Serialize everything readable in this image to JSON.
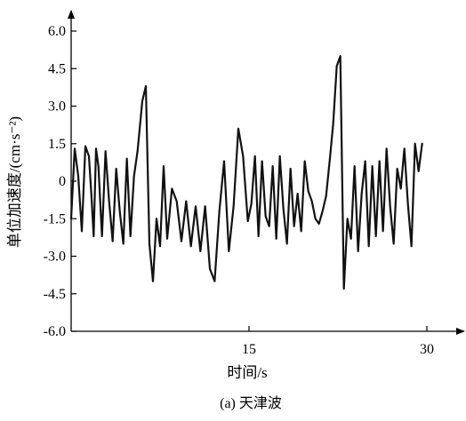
{
  "caption": "(a) 天津波",
  "chart_data": {
    "type": "line",
    "xlabel": "时间/s",
    "ylabel": "单位加速度/(cm·s⁻²)",
    "xlim": [
      0,
      30
    ],
    "ylim": [
      -6.0,
      6.0
    ],
    "x_ticks": [
      15,
      30
    ],
    "x_tick_labels": [
      "15",
      "30"
    ],
    "y_ticks": [
      -6.0,
      -4.5,
      -3.0,
      -1.5,
      0,
      1.5,
      3.0,
      4.5,
      6.0
    ],
    "y_tick_labels": [
      "-6.0",
      "-4.5",
      "-3.0",
      "-1.5",
      "0",
      "1.5",
      "3.0",
      "4.5",
      "6.0"
    ],
    "grid": false,
    "legend": "none",
    "line_color": "#111111",
    "series": [
      {
        "x": [
          0.0,
          0.3,
          0.6,
          0.9,
          1.2,
          1.5,
          1.7,
          1.9,
          2.1,
          2.3,
          2.6,
          2.9,
          3.2,
          3.5,
          3.8,
          4.1,
          4.4,
          4.7,
          5.0,
          5.3,
          5.6,
          6.0,
          6.3,
          6.6,
          6.9,
          7.2,
          7.5,
          7.8,
          8.1,
          8.5,
          8.9,
          9.3,
          9.7,
          10.1,
          10.5,
          10.9,
          11.3,
          11.7,
          12.1,
          12.5,
          12.9,
          13.3,
          13.7,
          14.1,
          14.5,
          14.9,
          15.2,
          15.5,
          15.8,
          16.1,
          16.4,
          16.7,
          17.0,
          17.3,
          17.6,
          17.9,
          18.2,
          18.5,
          18.8,
          19.1,
          19.4,
          19.7,
          20.0,
          20.3,
          20.6,
          20.9,
          21.2,
          21.5,
          21.8,
          22.1,
          22.4,
          22.7,
          23.0,
          23.3,
          23.6,
          23.9,
          24.2,
          24.5,
          24.8,
          25.1,
          25.4,
          25.7,
          26.0,
          26.3,
          26.6,
          26.9,
          27.2,
          27.5,
          27.8,
          28.1,
          28.4,
          28.7,
          29.0,
          29.3,
          29.6
        ],
        "y": [
          -1.5,
          1.3,
          0.2,
          -2.0,
          1.4,
          1.0,
          -0.5,
          -2.2,
          1.3,
          0.6,
          -2.2,
          1.2,
          -0.8,
          -2.4,
          0.5,
          -1.2,
          -2.5,
          0.9,
          -2.2,
          0.2,
          1.2,
          3.2,
          3.8,
          -2.5,
          -4.0,
          -1.5,
          -2.6,
          0.6,
          -2.3,
          -0.3,
          -0.8,
          -2.4,
          -0.8,
          -2.6,
          -1.0,
          -2.8,
          -1.0,
          -3.5,
          -4.0,
          -1.2,
          0.8,
          -2.8,
          -1.0,
          2.1,
          1.0,
          -1.6,
          -0.9,
          1.0,
          -2.2,
          0.8,
          -1.4,
          -1.8,
          0.6,
          -2.3,
          1.0,
          -1.1,
          -2.5,
          0.5,
          -1.8,
          -0.5,
          -2.0,
          0.8,
          -0.4,
          -0.8,
          -1.5,
          -1.7,
          -1.2,
          -0.6,
          0.8,
          2.3,
          4.6,
          5.0,
          -4.3,
          -1.5,
          -2.3,
          0.6,
          -2.8,
          -0.5,
          0.8,
          -2.6,
          0.6,
          -2.2,
          0.8,
          -2.0,
          1.3,
          -1.0,
          -2.5,
          0.5,
          -0.3,
          1.3,
          -0.9,
          -2.6,
          1.5,
          0.4,
          1.5
        ]
      }
    ]
  }
}
